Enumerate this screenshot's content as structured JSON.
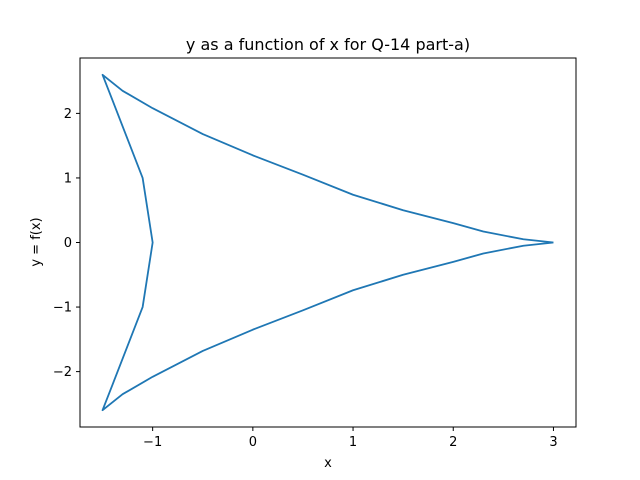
{
  "chart_data": {
    "type": "line",
    "title": "y as a function of x for Q-14 part-a)",
    "xlabel": "x",
    "ylabel": "y = f(x)",
    "xlim": [
      -1.725,
      3.225
    ],
    "ylim": [
      -2.858,
      2.858
    ],
    "xticks": [
      -1,
      0,
      1,
      2,
      3
    ],
    "yticks": [
      -2,
      -1,
      0,
      1,
      2
    ],
    "xtick_labels": [
      "−1",
      "0",
      "1",
      "2",
      "3"
    ],
    "ytick_labels": [
      "−2",
      "−1",
      "0",
      "1",
      "2"
    ],
    "grid": false,
    "line_color": "#1f77b4",
    "series": [
      {
        "x": [
          3,
          2.7,
          2.3,
          2,
          1.5,
          1,
          0.5,
          0,
          -0.5,
          -1,
          -1.3,
          -1.5,
          -1.4,
          -1.25,
          -1.1,
          -1,
          -1.1,
          -1.25,
          -1.4,
          -1.5,
          -1.3,
          -1,
          -0.5,
          0,
          0.5,
          1,
          1.5,
          2,
          2.3,
          2.7,
          3
        ],
        "y": [
          0,
          0.05,
          0.17,
          0.3,
          0.5,
          0.74,
          1.05,
          1.35,
          1.68,
          2.08,
          2.35,
          2.598,
          2.2,
          1.6,
          1.0,
          0,
          -1.0,
          -1.6,
          -2.2,
          -2.598,
          -2.35,
          -2.08,
          -1.68,
          -1.35,
          -1.05,
          -0.74,
          -0.5,
          -0.3,
          -0.17,
          -0.05,
          0
        ]
      }
    ]
  }
}
